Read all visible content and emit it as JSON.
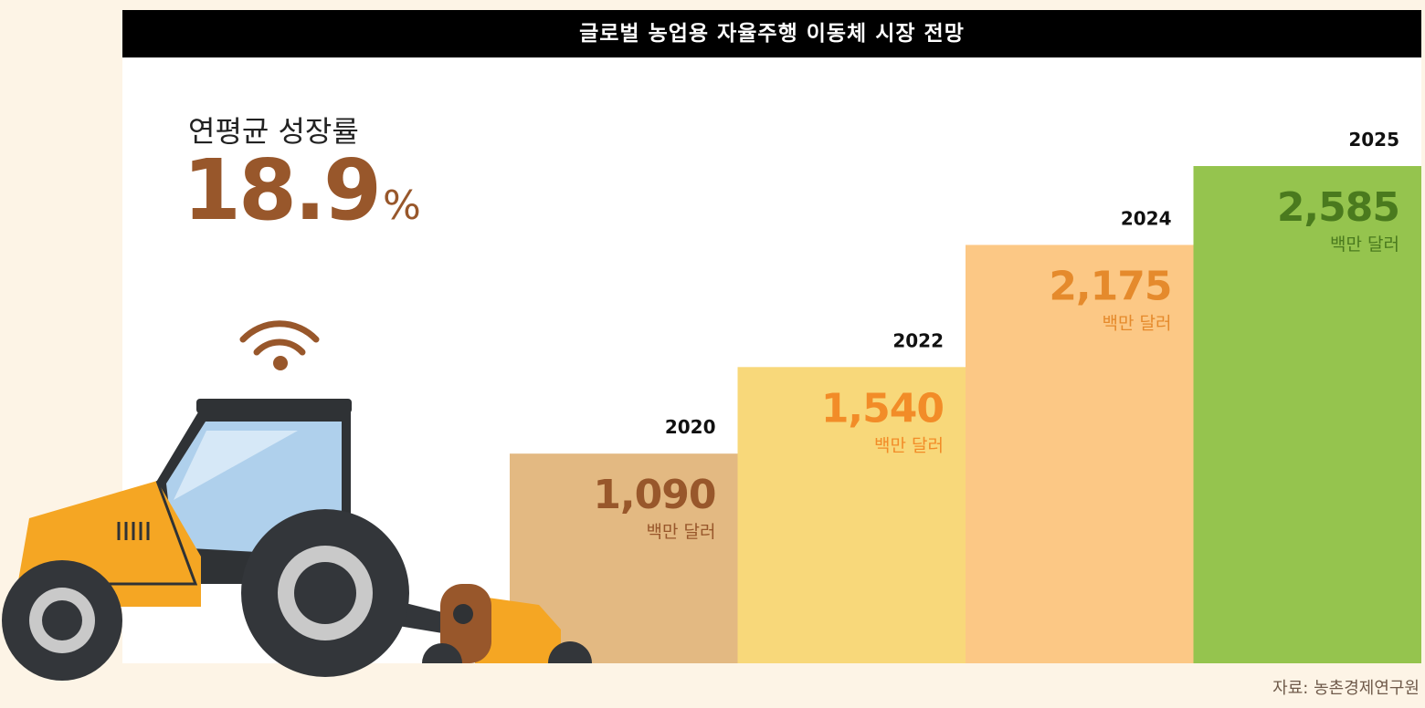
{
  "header": {
    "title": "글로벌 농업용 자율주행 이동체 시장 전망"
  },
  "highlight": {
    "label": "연평균 성장률",
    "value": "18.9",
    "unit": "%"
  },
  "source": "자료: 농촌경제연구원",
  "colors": {
    "background": "#fdf4e6",
    "title_bar": "#000000",
    "highlight": "#98572b",
    "tractor_body": "#f5a623",
    "tire": "#33363a"
  },
  "chart_data": {
    "type": "bar",
    "categories": [
      "2020",
      "2022",
      "2024",
      "2025"
    ],
    "values": [
      1090,
      1540,
      2175,
      2585
    ],
    "value_labels": [
      "1,090",
      "1,540",
      "2,175",
      "2,585"
    ],
    "unit_label": "백만 달러",
    "bar_colors": [
      "#e3b982",
      "#f8d87a",
      "#fcc885",
      "#95c44e"
    ],
    "label_colors": [
      "#98572b",
      "#f28c28",
      "#e58a2c",
      "#4a7a1e"
    ],
    "title": "글로벌 농업용 자율주행 이동체 시장 전망",
    "xlabel": "",
    "ylabel": "",
    "grid": false
  }
}
